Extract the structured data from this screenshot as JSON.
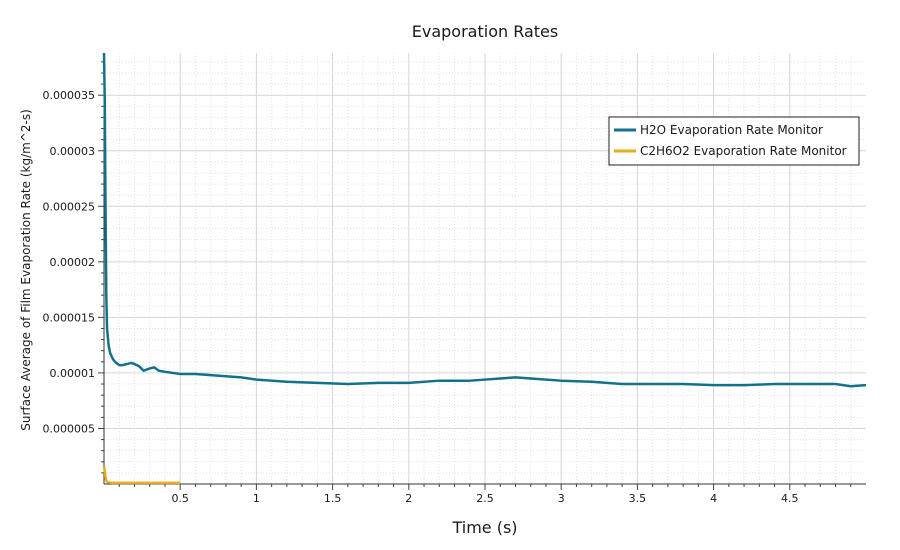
{
  "chart_data": {
    "type": "line",
    "title": "Evaporation Rates",
    "xlabel": "Time (s)",
    "ylabel": "Surface Average of Film Evaporation Rate (kg/m^2-s)",
    "xlim": [
      0,
      5.0
    ],
    "ylim": [
      0,
      3.88e-05
    ],
    "x_ticks": [
      0.5,
      1,
      1.5,
      2,
      2.5,
      3,
      3.5,
      4,
      4.5
    ],
    "x_tick_labels": [
      "0.5",
      "1",
      "1.5",
      "2",
      "2.5",
      "3",
      "3.5",
      "4",
      "4.5"
    ],
    "y_ticks": [
      5e-06,
      1e-05,
      1.5e-05,
      2e-05,
      2.5e-05,
      3e-05,
      3.5e-05
    ],
    "y_tick_labels": [
      "0.000005",
      "0.00001",
      "0.000015",
      "0.00002",
      "0.000025",
      "0.00003",
      "0.000035"
    ],
    "grid": true,
    "legend_position": "top-right",
    "series": [
      {
        "name": "H2O Evaporation Rate Monitor",
        "color": "#14718c",
        "x": [
          0,
          0.005,
          0.01,
          0.015,
          0.02,
          0.03,
          0.04,
          0.06,
          0.08,
          0.1,
          0.12,
          0.15,
          0.18,
          0.2,
          0.23,
          0.26,
          0.28,
          0.3,
          0.33,
          0.36,
          0.4,
          0.5,
          0.6,
          0.7,
          0.8,
          0.9,
          1.0,
          1.2,
          1.4,
          1.6,
          1.8,
          2.0,
          2.2,
          2.4,
          2.6,
          2.7,
          2.8,
          3.0,
          3.2,
          3.4,
          3.6,
          3.8,
          4.0,
          4.2,
          4.4,
          4.6,
          4.8,
          4.9,
          5.0
        ],
        "values": [
          3.88e-05,
          3.45e-05,
          2.5e-05,
          1.7e-05,
          1.4e-05,
          1.25e-05,
          1.18e-05,
          1.12e-05,
          1.09e-05,
          1.07e-05,
          1.07e-05,
          1.08e-05,
          1.09e-05,
          1.08e-05,
          1.06e-05,
          1.02e-05,
          1.03e-05,
          1.04e-05,
          1.05e-05,
          1.02e-05,
          1.01e-05,
          9.9e-06,
          9.9e-06,
          9.8e-06,
          9.7e-06,
          9.6e-06,
          9.4e-06,
          9.2e-06,
          9.1e-06,
          9e-06,
          9.1e-06,
          9.1e-06,
          9.3e-06,
          9.3e-06,
          9.5e-06,
          9.6e-06,
          9.5e-06,
          9.3e-06,
          9.2e-06,
          9e-06,
          9e-06,
          9e-06,
          8.9e-06,
          8.9e-06,
          9e-06,
          9e-06,
          9e-06,
          8.8e-06,
          8.9e-06
        ]
      },
      {
        "name": "C2H6O2 Evaporation Rate Monitor",
        "color": "#e6ae1e",
        "x": [
          0,
          0.005,
          0.01,
          0.015,
          0.02,
          0.03,
          0.05,
          0.1,
          0.2,
          0.3,
          0.4,
          0.5
        ],
        "values": [
          1.6e-06,
          1.2e-06,
          6e-07,
          3e-07,
          2e-07,
          1.5e-07,
          1e-07,
          1e-07,
          1e-07,
          1e-07,
          1e-07,
          1e-07
        ]
      }
    ]
  }
}
